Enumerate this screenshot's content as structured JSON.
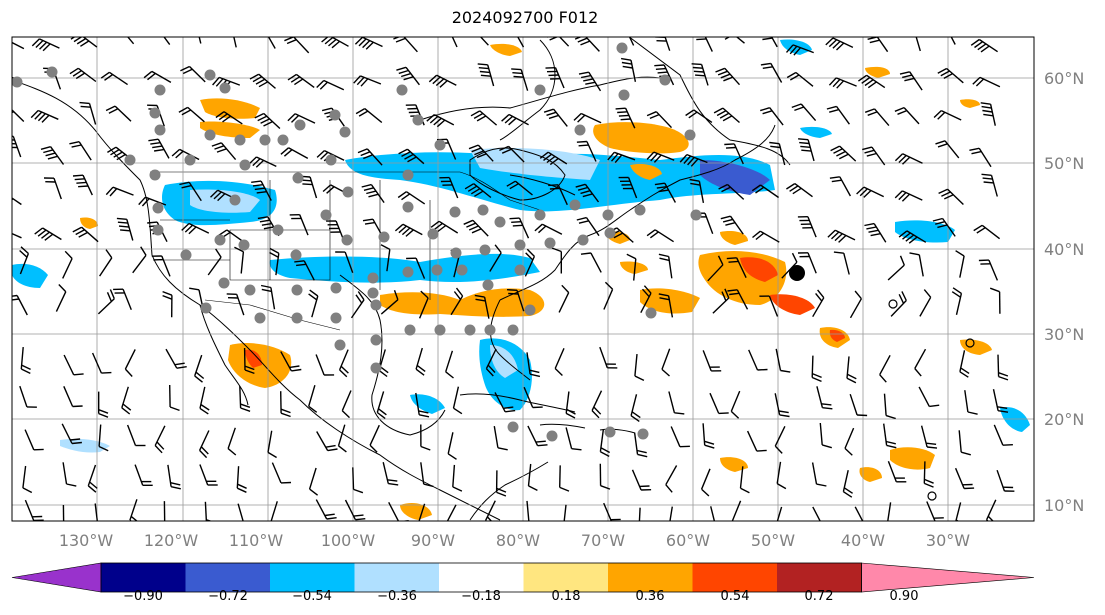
{
  "title": "2024092700 F012",
  "lon_labels": [
    "130°W",
    "120°W",
    "110°W",
    "100°W",
    "90°W",
    "80°W",
    "70°W",
    "60°W",
    "50°W",
    "40°W",
    "30°W"
  ],
  "lat_labels": [
    "60°N",
    "50°N",
    "40°N",
    "30°N",
    "20°N",
    "10°N"
  ],
  "colorbar": {
    "ticks": [
      "−0.90",
      "−0.72",
      "−0.54",
      "−0.36",
      "−0.18",
      "0.18",
      "0.36",
      "0.54",
      "0.72",
      "0.90"
    ],
    "colors": [
      "#9932cc",
      "#00008b",
      "#3a5bd0",
      "#00bfff",
      "#b0e0ff",
      "#ffffff",
      "#ffe680",
      "#ffa500",
      "#ff4500",
      "#b22222",
      "#ff88aa"
    ]
  },
  "legend_colors": {
    "blue": "#00bfff",
    "light_blue": "#b0e0ff",
    "orange": "#ffa500",
    "red": "#ff4500",
    "station": "#808080"
  }
}
